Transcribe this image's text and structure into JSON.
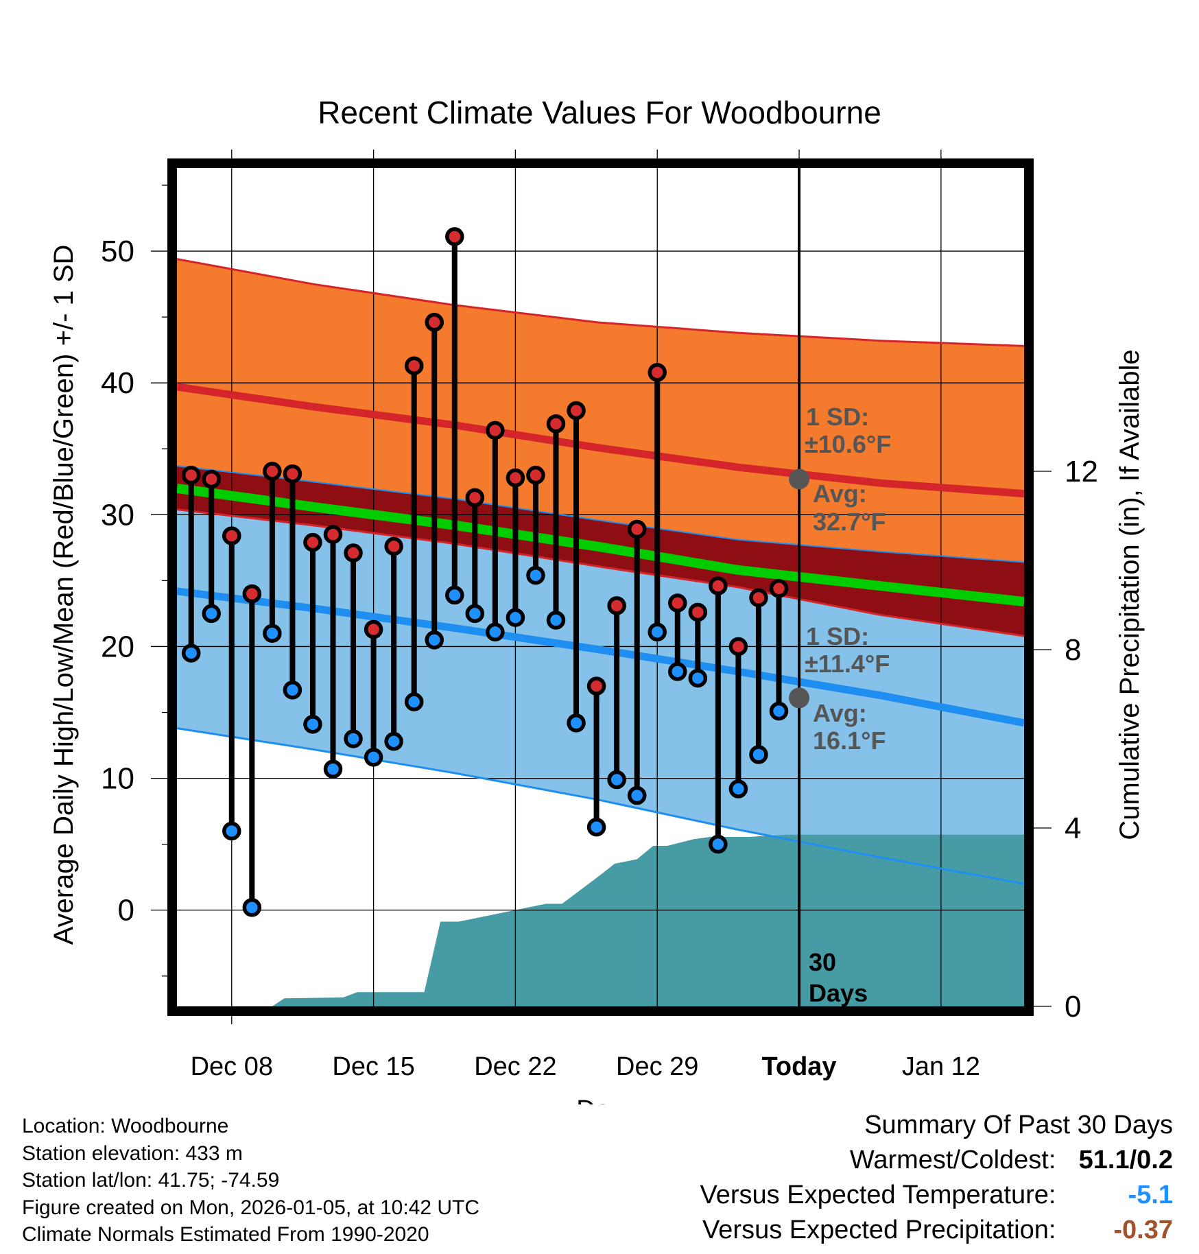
{
  "chart_data": {
    "type": "line",
    "title": "Recent Climate Values For Woodbourne",
    "xlabel": "Day",
    "ylabel": "Average Daily High/Low/Mean (Red/Blue/Green) +/- 1 SD",
    "y2label": "Cumulative Precipitation (in), If Available",
    "ylim": [
      -7.3,
      56.3
    ],
    "y2lim": [
      0,
      18.8
    ],
    "xlim": [
      0.3,
      42.1
    ],
    "yticks": [
      "50",
      "40",
      "30",
      "20",
      "10",
      "0"
    ],
    "ytick_values": [
      50,
      40,
      30,
      20,
      10,
      0
    ],
    "y2ticks": [
      "12",
      "8",
      "4",
      "0"
    ],
    "y2tick_values": [
      12,
      8,
      4,
      0
    ],
    "xticks": [
      "Dec 08",
      "Dec 15",
      "Dec 22",
      "Dec 29",
      "Today",
      "Jan 12"
    ],
    "xtick_days": [
      3,
      10,
      17,
      24,
      31,
      38
    ],
    "today_day": 31,
    "days": [
      1,
      2,
      3,
      4,
      5,
      6,
      7,
      8,
      9,
      10,
      11,
      12,
      13,
      14,
      15,
      16,
      17,
      18,
      19,
      20,
      21,
      22,
      23,
      24,
      25,
      26,
      27,
      28,
      29,
      30
    ],
    "highs": [
      33.0,
      32.7,
      28.4,
      24.0,
      33.3,
      33.1,
      27.9,
      28.5,
      27.1,
      21.3,
      27.6,
      41.3,
      44.6,
      51.1,
      31.3,
      36.4,
      32.8,
      33.0,
      36.9,
      37.9,
      17.0,
      23.1,
      28.9,
      40.8,
      23.3,
      22.6,
      24.6,
      20.0,
      23.7,
      24.4
    ],
    "lows": [
      19.5,
      22.5,
      6.0,
      0.2,
      21.0,
      16.7,
      14.1,
      10.7,
      13.0,
      11.6,
      12.8,
      15.8,
      20.5,
      23.9,
      22.5,
      21.1,
      22.2,
      25.4,
      22.0,
      14.2,
      6.3,
      9.9,
      8.7,
      21.1,
      18.1,
      17.6,
      5.0,
      9.2,
      11.8,
      15.1
    ],
    "normals": {
      "x": [
        0.3,
        7,
        14,
        21,
        28,
        35,
        42.1
      ],
      "high_mean": [
        39.7,
        38.2,
        36.8,
        35.1,
        33.6,
        32.4,
        31.6
      ],
      "high_upper": [
        49.4,
        47.5,
        45.9,
        44.6,
        43.8,
        43.2,
        42.8
      ],
      "high_lower": [
        30.4,
        29.2,
        27.8,
        26.1,
        24.5,
        22.4,
        20.8
      ],
      "mean": [
        32.0,
        30.6,
        29.2,
        27.6,
        25.8,
        24.6,
        23.4
      ],
      "low_mean": [
        24.2,
        22.9,
        21.4,
        19.8,
        18.1,
        16.3,
        14.2
      ],
      "low_upper": [
        33.7,
        32.5,
        31.2,
        29.6,
        28.1,
        27.2,
        26.4
      ],
      "low_lower": [
        13.8,
        12.2,
        10.4,
        8.4,
        6.1,
        4.0,
        2.0
      ]
    },
    "precip": {
      "x": [
        0.3,
        5.0,
        5.6,
        8.5,
        9.2,
        12.5,
        13.3,
        14.2,
        18.5,
        19.3,
        21.2,
        21.9,
        23.0,
        23.8,
        24.5,
        25.8,
        26.6,
        28.5,
        30.4,
        42.1
      ],
      "y": [
        0,
        0,
        0.18,
        0.2,
        0.32,
        0.32,
        1.9,
        1.9,
        2.3,
        2.3,
        2.95,
        3.2,
        3.3,
        3.6,
        3.6,
        3.75,
        3.8,
        3.8,
        3.85,
        3.85
      ]
    },
    "annotations": {
      "high_sd": "1 SD:",
      "high_sd_value": "±10.6°F",
      "high_avg": "Avg:",
      "high_avg_value": "32.7°F",
      "high_avg_num": 32.7,
      "low_sd": "1 SD:",
      "low_sd_value": "±11.4°F",
      "low_avg": "Avg:",
      "low_avg_value": "16.1°F",
      "low_avg_num": 16.1,
      "period_num": "30",
      "period_unit": "Days"
    },
    "colors": {
      "high_band": "#f47a2d",
      "high_line": "#d4262a",
      "low_band": "#85c1e8",
      "low_line": "#1e8ff0",
      "overlap": "#8e0e13",
      "mean": "#00cc00",
      "precip": "#479ba4",
      "high_dot": "#d62c2f",
      "low_dot": "#1e90ff",
      "annotation": "#555555"
    }
  },
  "info": {
    "location": "Location: Woodbourne",
    "elevation": "Station elevation: 433 m",
    "latlon": "Station lat/lon: 41.75; -74.59",
    "created": "Figure created on Mon, 2026-01-05, at 10:42 UTC",
    "normals": "Climate Normals Estimated From 1990-2020"
  },
  "summary": {
    "title": "Summary Of Past 30 Days",
    "warm_cold_label": "Warmest/Coldest:",
    "warm_cold_value": "51.1/0.2",
    "temp_label": "Versus Expected Temperature:",
    "temp_value": "-5.1",
    "temp_color": "#1e90ff",
    "precip_label": "Versus Expected Precipitation:",
    "precip_value": "-0.37",
    "precip_color": "#a0522d"
  }
}
